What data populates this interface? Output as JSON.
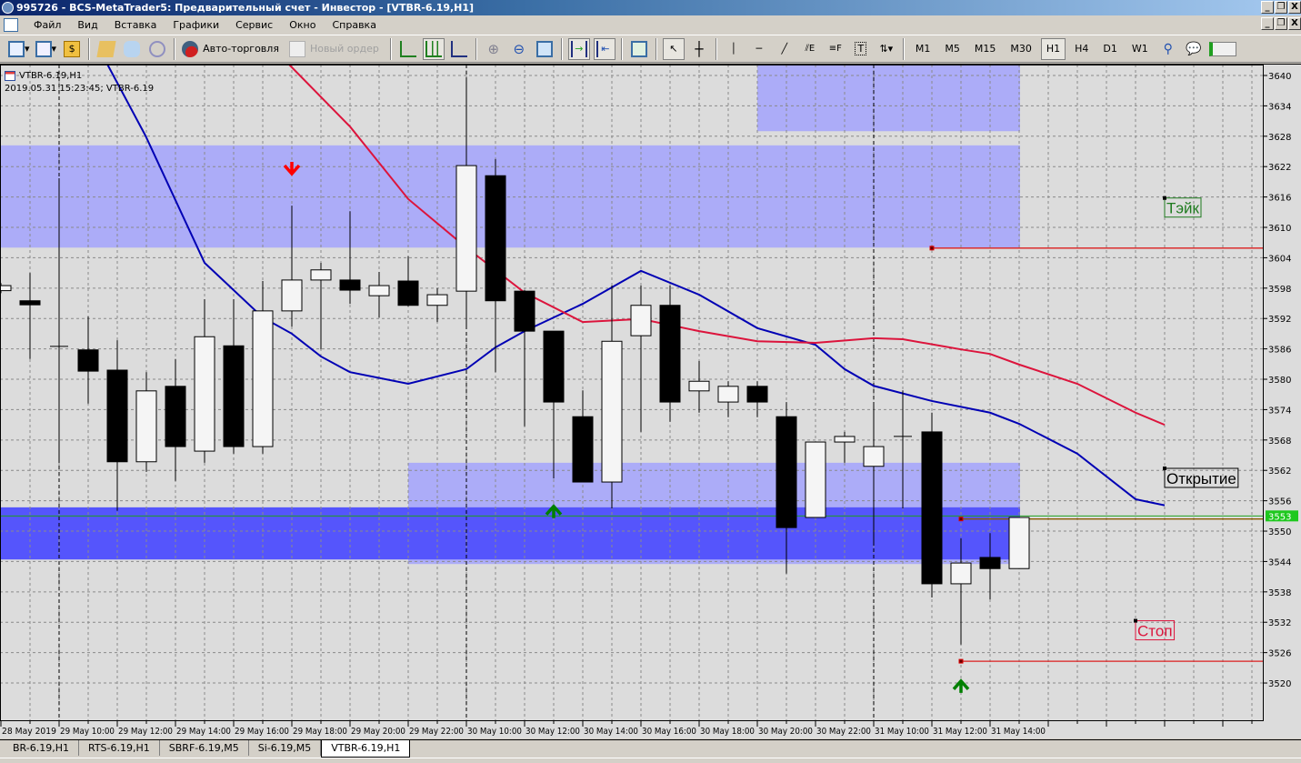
{
  "window": {
    "title": "995726 - BCS-MetaTrader5: Предварительный счет - Инвестор - [VTBR-6.19,H1]"
  },
  "menu": [
    "Файл",
    "Вид",
    "Вставка",
    "Графики",
    "Сервис",
    "Окно",
    "Справка"
  ],
  "toolbar": {
    "auto_trading": "Авто-торговля",
    "new_order": "Новый ордер",
    "timeframes": [
      "M1",
      "M5",
      "M15",
      "M30",
      "H1",
      "H4",
      "D1",
      "W1"
    ],
    "active_timeframe": "H1"
  },
  "chart_info": {
    "symbol": "VTBR-6.19,H1",
    "status": "2019.05.31 15:23:45; VTBR-6.19"
  },
  "tabs": [
    {
      "label": "BR-6.19,H1",
      "active": false
    },
    {
      "label": "RTS-6.19,H1",
      "active": false
    },
    {
      "label": "SBRF-6.19,M5",
      "active": false
    },
    {
      "label": "Si-6.19,M5",
      "active": false
    },
    {
      "label": "VTBR-6.19,H1",
      "active": true
    }
  ],
  "chart_data": {
    "type": "candlestick",
    "price_axis": {
      "ticks": [
        3640,
        3634,
        3628,
        3622,
        3616,
        3610,
        3604,
        3598,
        3592,
        3586,
        3580,
        3574,
        3568,
        3562,
        3556,
        3550,
        3544,
        3538,
        3532,
        3526,
        3520
      ],
      "current_price": "3553"
    },
    "time_labels": [
      "28 May 2019",
      "29 May 10:00",
      "29 May 12:00",
      "29 May 14:00",
      "29 May 16:00",
      "29 May 18:00",
      "29 May 20:00",
      "29 May 22:00",
      "30 May 10:00",
      "30 May 12:00",
      "30 May 14:00",
      "30 May 16:00",
      "30 May 18:00",
      "30 May 20:00",
      "30 May 22:00",
      "31 May 10:00",
      "31 May 12:00",
      "31 May 14:00"
    ],
    "grid": true,
    "candles_ohlc": [
      [
        3597.5,
        3599,
        3597,
        3598.5
      ],
      [
        3595.5,
        3601,
        3584,
        3594.7
      ],
      [
        3586.5,
        3619.7,
        3564,
        3586.5
      ],
      [
        3585.8,
        3592.4,
        3575.2,
        3581.6
      ],
      [
        3581.8,
        3587.7,
        3554,
        3563.7
      ],
      [
        3563.7,
        3581.4,
        3561.7,
        3577.7
      ],
      [
        3578.6,
        3584,
        3559.9,
        3566.7
      ],
      [
        3565.8,
        3595.8,
        3563.5,
        3588.4
      ],
      [
        3586.6,
        3595.8,
        3565.3,
        3566.7
      ],
      [
        3566.7,
        3599.4,
        3565.3,
        3593.5
      ],
      [
        3593.5,
        3614.3,
        3590.4,
        3599.6
      ],
      [
        3599.6,
        3603,
        3585.9,
        3601.6
      ],
      [
        3599.6,
        3613.2,
        3594.9,
        3597.6
      ],
      [
        3596.5,
        3601.2,
        3592.2,
        3598.5
      ],
      [
        3599.4,
        3604.3,
        3594.4,
        3594.6
      ],
      [
        3594.6,
        3598,
        3591.3,
        3596.7
      ],
      [
        3597.4,
        3639.3,
        3590.1,
        3622.2
      ],
      [
        3620.2,
        3623.5,
        3581.4,
        3595.5
      ],
      [
        3597.4,
        3597.6,
        3570.7,
        3589.5
      ],
      [
        3589.5,
        3589.5,
        3560.4,
        3575.5
      ],
      [
        3572.6,
        3577.8,
        3559.7,
        3559.7
      ],
      [
        3559.7,
        3598.5,
        3554.5,
        3587.5
      ],
      [
        3588.6,
        3598.5,
        3569.6,
        3594.6
      ],
      [
        3594.6,
        3598.5,
        3571.6,
        3575.5
      ],
      [
        3577.7,
        3583.6,
        3573.4,
        3579.6
      ],
      [
        3575.5,
        3579.6,
        3572.5,
        3578.6
      ],
      [
        3578.6,
        3579.6,
        3572.5,
        3575.5
      ],
      [
        3572.6,
        3575.5,
        3541.6,
        3550.7
      ],
      [
        3552.7,
        3567.6,
        3552.7,
        3567.6
      ],
      [
        3567.6,
        3569.6,
        3563.5,
        3568.7
      ],
      [
        3562.8,
        3575.5,
        3547.7,
        3566.7
      ],
      [
        3568.7,
        3577.8,
        3554.5,
        3568.7
      ],
      [
        3569.6,
        3573.4,
        3536.9,
        3539.6
      ],
      [
        3539.6,
        3548.6,
        3527.6,
        3543.7
      ],
      [
        3544.8,
        3549.6,
        3536.5,
        3542.6
      ],
      [
        3542.6,
        3552.7,
        3542.6,
        3552.7
      ]
    ],
    "ma_blue": [
      [
        3.66,
        3642.2
      ],
      [
        4.97,
        3628.1
      ],
      [
        7,
        3603
      ],
      [
        9,
        3592.2
      ],
      [
        10,
        3589
      ],
      [
        11,
        3584.5
      ],
      [
        12,
        3581.4
      ],
      [
        14,
        3579.1
      ],
      [
        16,
        3582
      ],
      [
        17,
        3586.3
      ],
      [
        18,
        3589.5
      ],
      [
        20,
        3594.9
      ],
      [
        22,
        3601.4
      ],
      [
        24,
        3596.7
      ],
      [
        26,
        3590.1
      ],
      [
        28,
        3586.8
      ],
      [
        29,
        3582
      ],
      [
        30,
        3578.7
      ],
      [
        32,
        3575.7
      ],
      [
        34,
        3573.4
      ],
      [
        35,
        3571.2
      ],
      [
        37,
        3565.3
      ],
      [
        39,
        3556.3
      ],
      [
        40,
        3555.1
      ]
    ],
    "ma_red": [
      [
        9.9,
        3642.2
      ],
      [
        12,
        3629.9
      ],
      [
        14,
        3615.6
      ],
      [
        16,
        3606
      ],
      [
        18,
        3597.1
      ],
      [
        20,
        3591.3
      ],
      [
        22,
        3591.9
      ],
      [
        24,
        3589.5
      ],
      [
        26,
        3587.5
      ],
      [
        28,
        3587.2
      ],
      [
        30,
        3588.1
      ],
      [
        31,
        3587.9
      ],
      [
        33,
        3585.9
      ],
      [
        34,
        3585
      ],
      [
        35,
        3582.9
      ],
      [
        37,
        3579.1
      ],
      [
        39,
        3573.4
      ],
      [
        40,
        3571
      ]
    ],
    "zones": [
      {
        "from_index": 26,
        "to_index": 35,
        "top": 3642,
        "bottom": 3629,
        "color": "#acacf8"
      },
      {
        "from_index": -0.1,
        "to_index": 35,
        "top": 3626.2,
        "bottom": 3606,
        "color": "#acacf8"
      },
      {
        "from_index": 14,
        "to_index": 35,
        "top": 3563.5,
        "bottom": 3543.5,
        "color": "#acacf8"
      },
      {
        "from_index": -0.1,
        "to_index": 35,
        "top": 3554.7,
        "bottom": 3544.4,
        "color": "#5555fc"
      }
    ],
    "levels": [
      {
        "label": "Тэйк",
        "price": 3605.9,
        "from_index": 32,
        "label_price": 3615.8,
        "label_index": 40,
        "color": "#dc1e1e",
        "label_color": "#1e7a1e"
      },
      {
        "label": "Открытие",
        "price": 3552.4,
        "from_index": 33,
        "label_price": 3562.4,
        "label_index": 40,
        "color": "#8b5a00",
        "label_color": "#000000"
      },
      {
        "label": "Стоп",
        "price": 3524.3,
        "from_index": 33,
        "label_price": 3532.3,
        "label_index": 39,
        "color": "#dc1e1e",
        "label_color": "#dc143c"
      }
    ],
    "bid_line": 3553,
    "signals": [
      {
        "type": "sell-arrow",
        "index": 10,
        "price": 3621.5,
        "color": "#ff0000"
      },
      {
        "type": "buy-arrow",
        "index": 19,
        "price": 3554,
        "color": "#008000"
      },
      {
        "type": "buy-arrow",
        "index": 33,
        "price": 3519.5,
        "color": "#008000"
      }
    ],
    "period_separators": [
      2,
      16,
      30
    ],
    "colors": {
      "background": "#dcdcdc",
      "bull": "#f5f5f5",
      "bear": "#000000",
      "ma_blue": "#0000b4",
      "ma_red": "#dc143c",
      "bid": "#1ea01e"
    }
  }
}
